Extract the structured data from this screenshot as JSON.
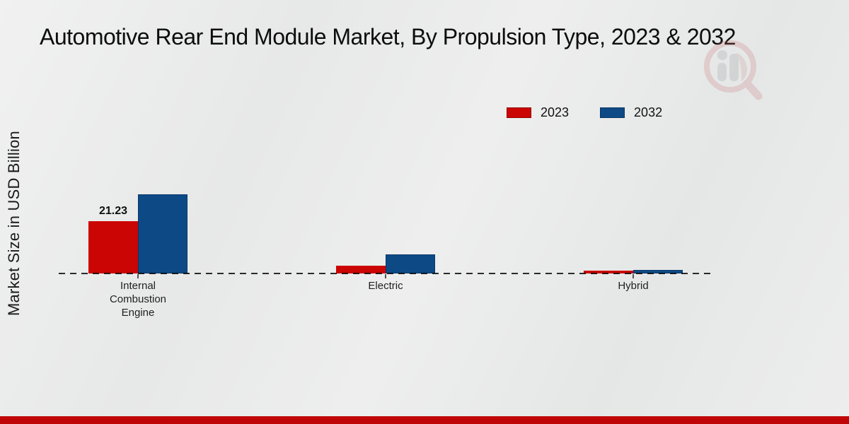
{
  "title": "Automotive Rear End Module Market, By Propulsion Type, 2023 & 2032",
  "y_axis_label": "Market Size in USD Billion",
  "legend": {
    "items": [
      {
        "label": "2023",
        "color": "#cb0404"
      },
      {
        "label": "2032",
        "color": "#0d4a85"
      }
    ]
  },
  "chart_data": {
    "type": "bar",
    "title": "Automotive Rear End Module Market, By Propulsion Type, 2023 & 2032",
    "xlabel": "",
    "ylabel": "Market Size in USD Billion",
    "categories": [
      "Internal Combustion Engine",
      "Electric",
      "Hybrid"
    ],
    "series": [
      {
        "name": "2023",
        "color": "#cb0404",
        "values": [
          21.23,
          3.0,
          1.0
        ]
      },
      {
        "name": "2032",
        "color": "#0d4a85",
        "values": [
          32.0,
          7.6,
          1.45
        ]
      }
    ],
    "ylim": [
      0,
      32.0
    ],
    "grid": false,
    "legend_position": "top-right",
    "baseline_style": "dashed",
    "data_labels": [
      {
        "category_index": 0,
        "series_index": 0,
        "text": "21.23"
      }
    ]
  },
  "branding": {
    "bottom_bar_color": "#bf0505",
    "watermark_icon": "magnifier-bar-chart-logo"
  }
}
